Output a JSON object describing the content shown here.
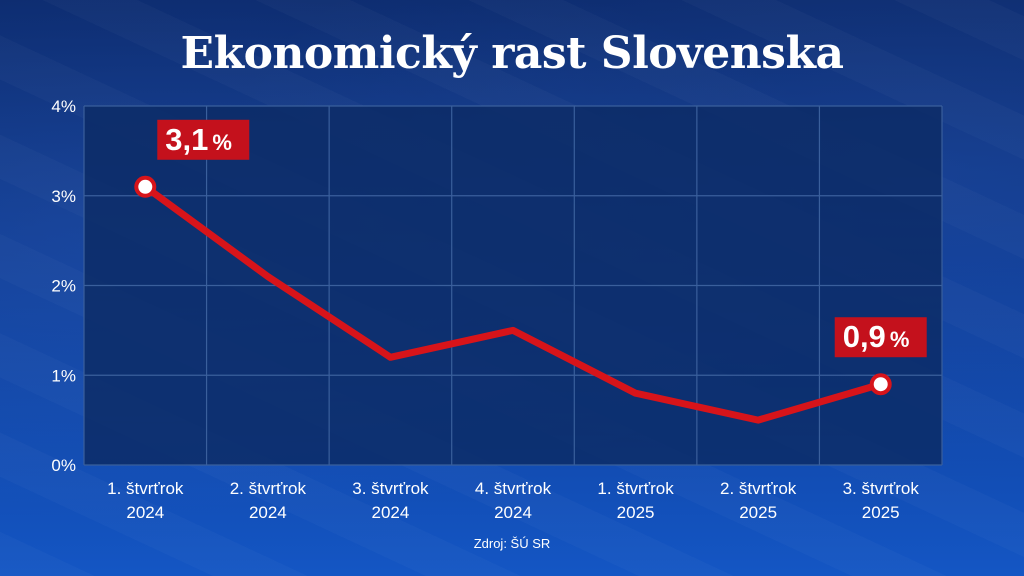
{
  "header": {
    "title": "Ekonomický rast Slovenska"
  },
  "footer": {
    "source": "Zdroj: ŠÚ SR"
  },
  "colors": {
    "line": "#d7141a",
    "label_bg": "#c4111c",
    "grid": "#3a5f9c",
    "plot_bg": "#0c2c66"
  },
  "chart_data": {
    "type": "line",
    "categories": [
      [
        "1. štvrťrok",
        "2024"
      ],
      [
        "2. štvrťrok",
        "2024"
      ],
      [
        "3. štvrťrok",
        "2024"
      ],
      [
        "4. štvrťrok",
        "2024"
      ],
      [
        "1. štvrťrok",
        "2025"
      ],
      [
        "2. štvrťrok",
        "2025"
      ],
      [
        "3. štvrťrok",
        "2025"
      ]
    ],
    "values": [
      3.1,
      2.1,
      1.2,
      1.5,
      0.8,
      0.5,
      0.9
    ],
    "ylim": [
      0,
      4
    ],
    "yticks": [
      {
        "value": 0,
        "label": "0%"
      },
      {
        "value": 1,
        "label": "1%"
      },
      {
        "value": 2,
        "label": "2%"
      },
      {
        "value": 3,
        "label": "3%"
      },
      {
        "value": 4,
        "label": "4%"
      }
    ],
    "annotations": [
      {
        "index": 0,
        "number": "3,1",
        "unit": "%"
      },
      {
        "index": 6,
        "number": "0,9",
        "unit": "%"
      }
    ],
    "grid": true
  }
}
